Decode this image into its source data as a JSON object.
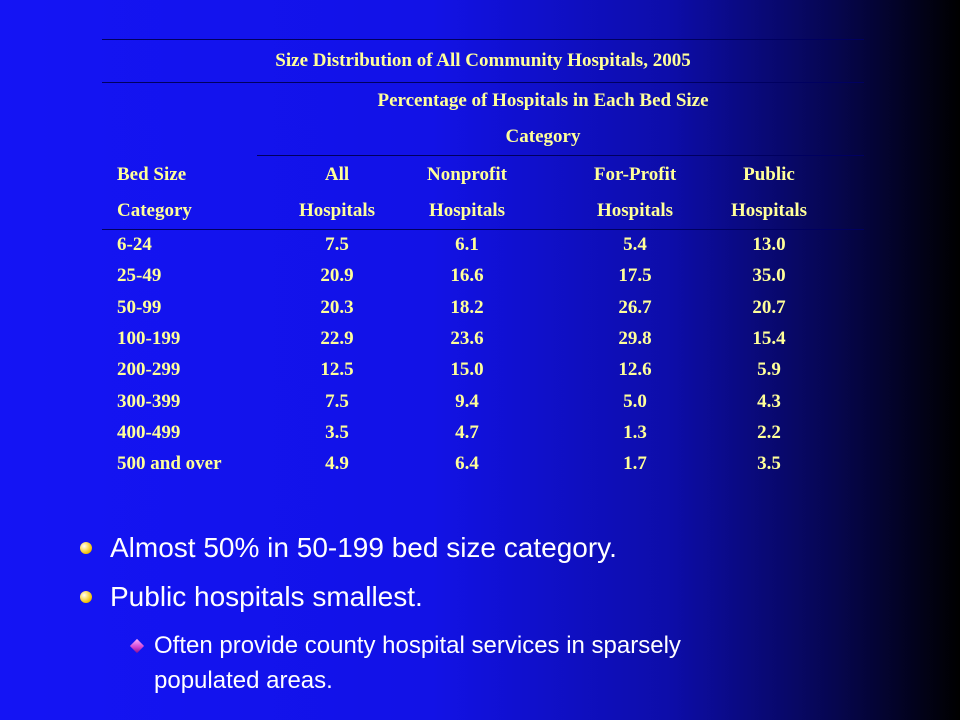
{
  "table": {
    "title": "Size Distribution of All Community Hospitals, 2005",
    "group_header": [
      "Percentage of Hospitals in Each Bed Size",
      "Category"
    ],
    "columns": [
      [
        "Bed Size",
        "Category"
      ],
      [
        "All",
        "Hospitals"
      ],
      [
        "Nonprofit",
        "Hospitals"
      ],
      [
        "For-Profit",
        "Hospitals"
      ],
      [
        "Public",
        "Hospitals"
      ]
    ],
    "rows": [
      [
        "6-24",
        "7.5",
        "6.1",
        "5.4",
        "13.0"
      ],
      [
        "25-49",
        "20.9",
        "16.6",
        "17.5",
        "35.0"
      ],
      [
        "50-99",
        "20.3",
        "18.2",
        "26.7",
        "20.7"
      ],
      [
        "100-199",
        "22.9",
        "23.6",
        "29.8",
        "15.4"
      ],
      [
        "200-299",
        "12.5",
        "15.0",
        "12.6",
        "5.9"
      ],
      [
        "300-399",
        "7.5",
        "9.4",
        "5.0",
        "4.3"
      ],
      [
        "400-499",
        "3.5",
        "4.7",
        "1.3",
        "2.2"
      ],
      [
        "500 and over",
        "4.9",
        "6.4",
        "1.7",
        "3.5"
      ]
    ]
  },
  "bullets": [
    {
      "level": 1,
      "lines": [
        "Almost 50% in 50-199 bed size category."
      ]
    },
    {
      "level": 1,
      "lines": [
        "Public hospitals smallest."
      ]
    },
    {
      "level": 2,
      "lines": [
        "Often provide county hospital services in sparsely",
        "populated areas."
      ]
    }
  ],
  "colors": {
    "table_text": "#ffff99",
    "bullet_text": "#ffffff",
    "level1_bullet": "#f0c000",
    "level2_bullet": "#d040d0"
  }
}
